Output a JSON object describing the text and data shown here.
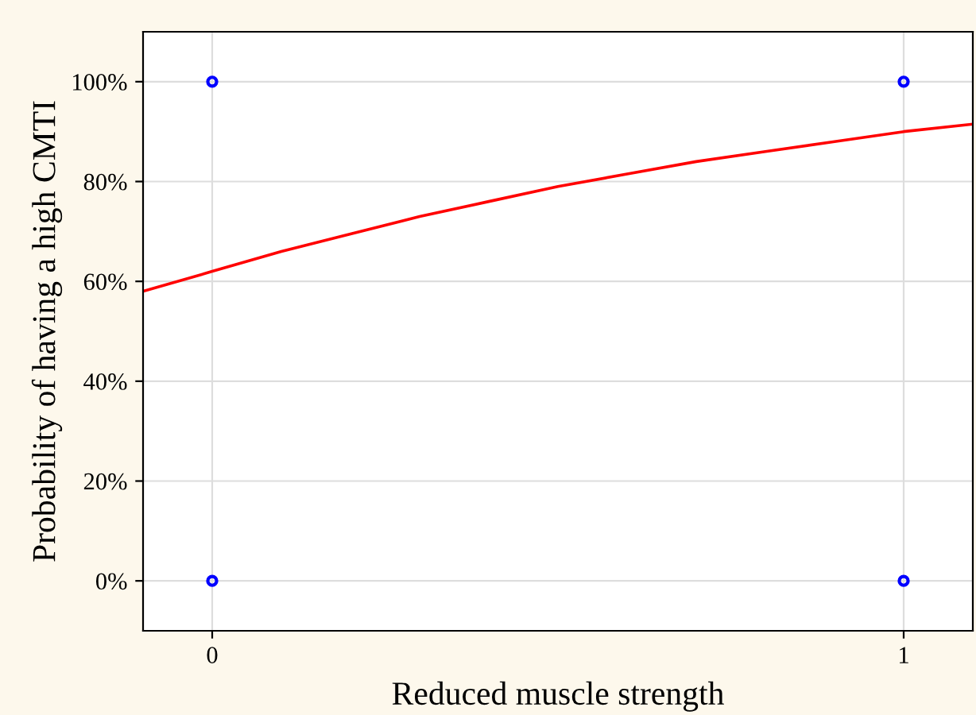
{
  "chart_data": {
    "type": "scatter",
    "xlabel": "Reduced muscle strength",
    "ylabel": "Probability of having a high CMTI",
    "xlim": [
      -0.1,
      1.1
    ],
    "xticks": [
      0,
      1
    ],
    "ylim": [
      -10,
      110
    ],
    "yticks": [
      {
        "value": 0,
        "label": "0%"
      },
      {
        "value": 20,
        "label": "20%"
      },
      {
        "value": 40,
        "label": "40%"
      },
      {
        "value": 60,
        "label": "60%"
      },
      {
        "value": 80,
        "label": "80%"
      },
      {
        "value": 100,
        "label": "100%"
      }
    ],
    "grid": true,
    "series": [
      {
        "color": "#0000ff",
        "marker": "circle",
        "x": [
          0,
          0,
          1,
          1
        ],
        "values": [
          0,
          100,
          0,
          100
        ]
      },
      {
        "type": "line",
        "color": "#ff0000",
        "marker": "none",
        "line_style": "solid",
        "x": [
          -0.1,
          0,
          0.1,
          0.2,
          0.3,
          0.4,
          0.5,
          0.6,
          0.7,
          0.8,
          0.9,
          1.0,
          1.1
        ],
        "values": [
          58,
          62,
          66,
          69.5,
          73,
          76,
          79,
          81.5,
          84,
          86,
          88,
          90,
          91.5
        ]
      }
    ]
  }
}
